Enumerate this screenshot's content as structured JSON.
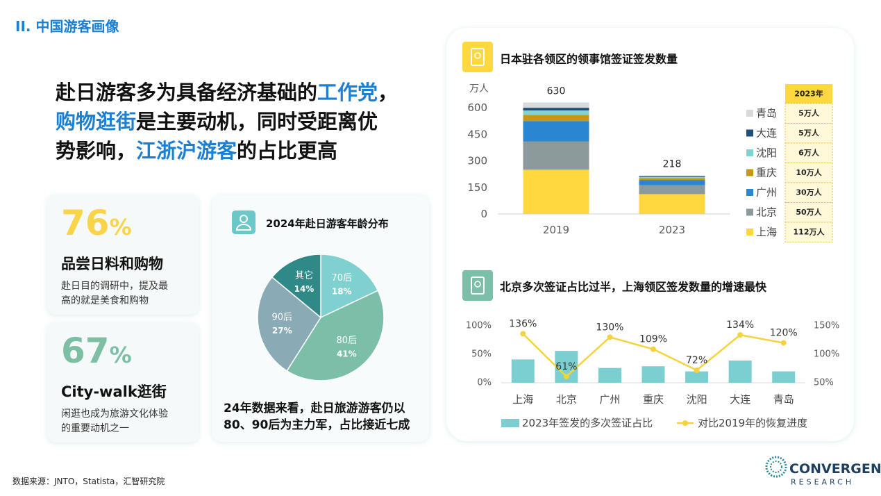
{
  "header": {
    "section": "II. 中国游客画像"
  },
  "headline": {
    "highlight_color": "#1b7fd4",
    "lines": [
      [
        {
          "text": "赴日游客多为具备经济基础的",
          "highlight": false
        },
        {
          "text": "工作党",
          "highlight": true
        },
        {
          "text": "，",
          "highlight": false
        }
      ],
      [
        {
          "text": "购物逛街",
          "highlight": true
        },
        {
          "text": "是主要动机，同时受距离优",
          "highlight": false
        }
      ],
      [
        {
          "text": "势影响，",
          "highlight": false
        },
        {
          "text": "江浙沪游客",
          "highlight": true
        },
        {
          "text": "的占比更高",
          "highlight": false
        }
      ]
    ]
  },
  "cards": [
    {
      "stat": 76,
      "unit": "%",
      "color": "#f9d349",
      "title": "品尝日料和购物",
      "desc": [
        "赴日目的调研中，提及最",
        "高的就是美食和购物"
      ]
    },
    {
      "stat": 67,
      "unit": "%",
      "color": "#7cbfa5",
      "title": "City-walk逛街",
      "desc": [
        "闲逛也成为旅游文化体验",
        "的重要动机之一"
      ]
    }
  ],
  "chart_data": [
    {
      "type": "pie",
      "title": "2024年赴日游客年龄分布",
      "categories": [
        "70后",
        "80后",
        "90后",
        "其它"
      ],
      "values": [
        18,
        41,
        27,
        14
      ],
      "value_labels": [
        "18%",
        "41%",
        "27%",
        "14%"
      ],
      "colors": [
        "#7fd1cf",
        "#7bbfa8",
        "#8aaab5",
        "#2f8a87"
      ],
      "caption": [
        "24年数据来看，赴日旅游游客仍以",
        "80、90后为主力军，占比接近七成"
      ]
    },
    {
      "type": "stacked-bar",
      "title": "日本驻各领区的领事馆签证签发数量",
      "ylabel": "万人",
      "categories": [
        "2019",
        "2023"
      ],
      "series": [
        {
          "name": "上海",
          "color": "#ffd83f",
          "values": [
            250,
            112
          ]
        },
        {
          "name": "北京",
          "color": "#8c9a9c",
          "values": [
            160,
            50
          ]
        },
        {
          "name": "广州",
          "color": "#2a86d1",
          "values": [
            115,
            30
          ]
        },
        {
          "name": "重庆",
          "color": "#c49a13",
          "values": [
            35,
            10
          ]
        },
        {
          "name": "沈阳",
          "color": "#7fd3d1",
          "values": [
            25,
            6
          ]
        },
        {
          "name": "大连",
          "color": "#1f4e79",
          "values": [
            15,
            5
          ]
        },
        {
          "name": "青岛",
          "color": "#d9d9d9",
          "values": [
            30,
            5
          ]
        }
      ],
      "totals": [
        630,
        218
      ],
      "ylim": [
        0,
        675
      ],
      "yticks": [
        0,
        150,
        300,
        450,
        600
      ],
      "table": {
        "header": "2023年",
        "cells": [
          "5万人",
          "5万人",
          "6万人",
          "10万人",
          "30万人",
          "50万人",
          "112万人"
        ]
      }
    },
    {
      "type": "bar-line",
      "title": "北京多次签证占比过半，上海领区签发数量的增速最快",
      "categories": [
        "上海",
        "北京",
        "广州",
        "重庆",
        "沈阳",
        "大连",
        "青岛"
      ],
      "series": [
        {
          "name": "2023年签发的多次签证占比",
          "type": "bar",
          "color": "#7ccfd0",
          "values": [
            41,
            56,
            26,
            29,
            20,
            39,
            20
          ]
        },
        {
          "name": "对比2019年的恢复进度",
          "type": "line",
          "axis": "y2",
          "color": "#f5d33f",
          "values": [
            136,
            61,
            130,
            109,
            72,
            134,
            120
          ],
          "value_labels": [
            "136%",
            "61%",
            "130%",
            "109%",
            "72%",
            "134%",
            "120%"
          ]
        }
      ],
      "ylim": [
        0,
        100
      ],
      "yticks": [
        {
          "value": 0,
          "label": "0%"
        },
        {
          "value": 50,
          "label": "50%"
        },
        {
          "value": 100,
          "label": "100%"
        }
      ],
      "y2lim": [
        50,
        150
      ],
      "y2ticks": [
        {
          "value": 50,
          "label": "50%"
        },
        {
          "value": 100,
          "label": "100%"
        },
        {
          "value": 150,
          "label": "150%"
        }
      ]
    }
  ],
  "source": "数据来源：JNTO，Statista，汇智研究院",
  "logo": {
    "name": "CONVERGENT",
    "sub": "RESEARCH"
  }
}
